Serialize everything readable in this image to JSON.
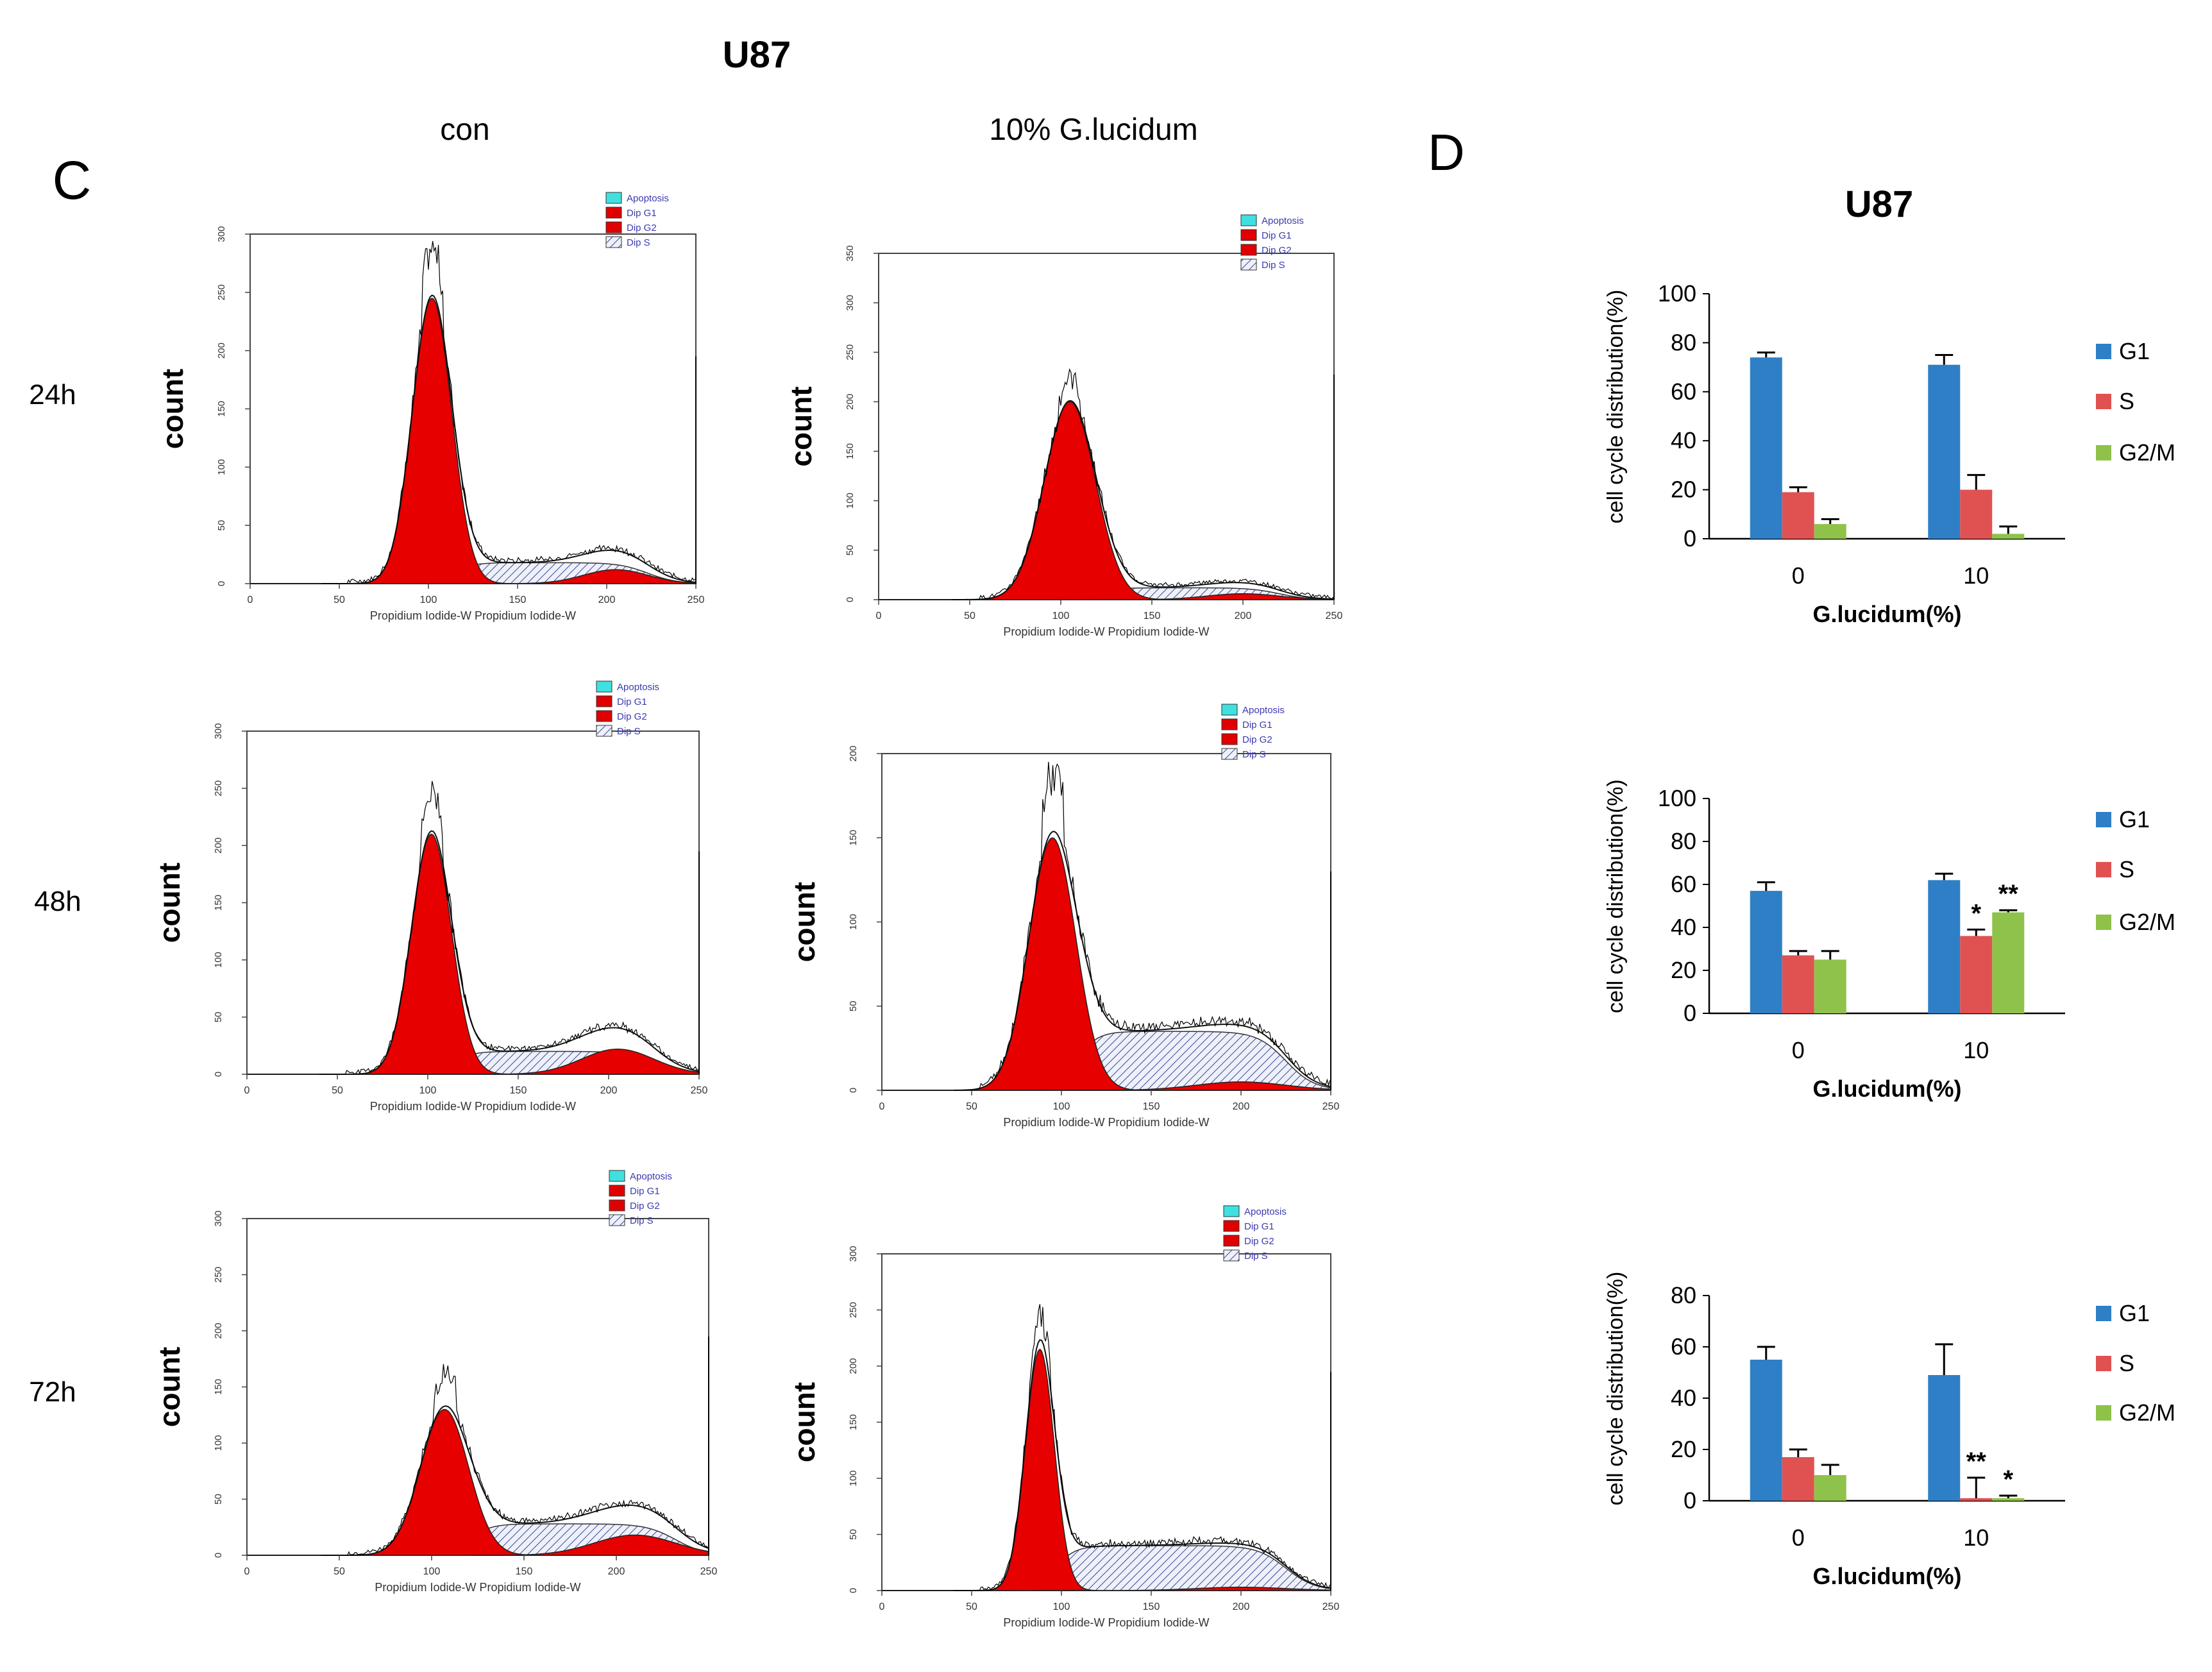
{
  "titles": {
    "main": "U87",
    "panel_c_letter": "C",
    "panel_d_letter": "D",
    "panel_d_title": "U87",
    "col_con": "con",
    "col_treated": "10% G.lucidum"
  },
  "rows": [
    "24h",
    "48h",
    "72h"
  ],
  "flow": {
    "ylabel": "count",
    "xlabel": "Propidium Iodide-W Propidium Iodide-W",
    "legend": [
      "Apoptosis",
      "Dip G1",
      "Dip G2",
      "Dip S"
    ],
    "x_ticks": [
      "0",
      "50",
      "100",
      "150",
      "200",
      "250"
    ],
    "panels": [
      {
        "row": "24h",
        "condition": "con",
        "ymax": 300,
        "y_ticks": [
          "0",
          "50",
          "100",
          "150",
          "200",
          "250",
          "300"
        ],
        "g1_mean": 102,
        "g1_sd": 11,
        "g1_height": 245,
        "g2_mean": 205,
        "g2_sd": 18,
        "g2_height": 12,
        "s_level": 18,
        "raw_scale": 1.15
      },
      {
        "row": "24h",
        "condition": "10% G.lucidum",
        "ymax": 350,
        "y_ticks": [
          "0",
          "50",
          "100",
          "150",
          "200",
          "250",
          "300",
          "350"
        ],
        "g1_mean": 105,
        "g1_sd": 14,
        "g1_height": 200,
        "g2_mean": 200,
        "g2_sd": 20,
        "g2_height": 6,
        "s_level": 12,
        "raw_scale": 1.1
      },
      {
        "row": "48h",
        "condition": "con",
        "ymax": 300,
        "y_ticks": [
          "0",
          "50",
          "100",
          "150",
          "200",
          "250",
          "300"
        ],
        "g1_mean": 102,
        "g1_sd": 11,
        "g1_height": 210,
        "g2_mean": 205,
        "g2_sd": 20,
        "g2_height": 22,
        "s_level": 20,
        "raw_scale": 1.15
      },
      {
        "row": "48h",
        "condition": "10% G.lucidum",
        "ymax": 200,
        "y_ticks": [
          "0",
          "50",
          "100",
          "150",
          "200"
        ],
        "g1_mean": 95,
        "g1_sd": 13,
        "g1_height": 150,
        "g2_mean": 200,
        "g2_sd": 25,
        "g2_height": 5,
        "s_level": 35,
        "raw_scale": 1.2
      },
      {
        "row": "72h",
        "condition": "con",
        "ymax": 300,
        "y_ticks": [
          "0",
          "50",
          "100",
          "150",
          "200",
          "250",
          "300"
        ],
        "g1_mean": 107,
        "g1_sd": 13,
        "g1_height": 130,
        "g2_mean": 210,
        "g2_sd": 22,
        "g2_height": 18,
        "s_level": 28,
        "raw_scale": 1.2
      },
      {
        "row": "72h",
        "condition": "10% G.lucidum",
        "ymax": 300,
        "y_ticks": [
          "0",
          "50",
          "100",
          "150",
          "200",
          "250",
          "300"
        ],
        "g1_mean": 88,
        "g1_sd": 8,
        "g1_height": 215,
        "g2_mean": 200,
        "g2_sd": 25,
        "g2_height": 3,
        "s_level": 40,
        "raw_scale": 1.1
      }
    ]
  },
  "chart_data": [
    {
      "type": "bar",
      "title": "U87",
      "time": "24h",
      "categories": [
        "0",
        "10"
      ],
      "xlabel": "G.lucidum(%)",
      "ylabel": "cell cycle distribution(%)",
      "ylim": [
        0,
        100
      ],
      "y_ticks": [
        "0",
        "20",
        "40",
        "60",
        "80",
        "100"
      ],
      "series": [
        {
          "name": "G1",
          "color": "#2e7fc6",
          "values": [
            74,
            71
          ],
          "errors": [
            2,
            4
          ]
        },
        {
          "name": "S",
          "color": "#e05252",
          "values": [
            19,
            20
          ],
          "errors": [
            2,
            6
          ]
        },
        {
          "name": "G2/M",
          "color": "#8fc24a",
          "values": [
            6,
            2
          ],
          "errors": [
            2,
            3
          ]
        }
      ],
      "annotations": []
    },
    {
      "type": "bar",
      "time": "48h",
      "categories": [
        "0",
        "10"
      ],
      "xlabel": "G.lucidum(%)",
      "ylabel": "cell cycle distribution(%)",
      "ylim": [
        0,
        100
      ],
      "y_ticks": [
        "0",
        "20",
        "40",
        "60",
        "80",
        "100"
      ],
      "series": [
        {
          "name": "G1",
          "color": "#2e7fc6",
          "values": [
            57,
            62
          ],
          "errors": [
            4,
            3
          ]
        },
        {
          "name": "S",
          "color": "#e05252",
          "values": [
            27,
            36
          ],
          "errors": [
            2,
            3
          ]
        },
        {
          "name": "G2/M",
          "color": "#8fc24a",
          "values": [
            25,
            47
          ],
          "errors": [
            4,
            1
          ]
        }
      ],
      "annotations": [
        {
          "category": "10",
          "series": "S",
          "text": "*"
        },
        {
          "category": "10",
          "series": "G2/M",
          "text": "**"
        }
      ]
    },
    {
      "type": "bar",
      "time": "72h",
      "categories": [
        "0",
        "10"
      ],
      "xlabel": "G.lucidum(%)",
      "ylabel": "cell cycle distribution(%)",
      "ylim": [
        0,
        80
      ],
      "y_ticks": [
        "0",
        "20",
        "40",
        "60",
        "80"
      ],
      "series": [
        {
          "name": "G1",
          "color": "#2e7fc6",
          "values": [
            55,
            49
          ],
          "errors": [
            5,
            12
          ]
        },
        {
          "name": "S",
          "color": "#e05252",
          "values": [
            17,
            1
          ],
          "errors": [
            3,
            8
          ]
        },
        {
          "name": "G2/M",
          "color": "#8fc24a",
          "values": [
            10,
            1
          ],
          "errors": [
            4,
            1
          ]
        }
      ],
      "annotations": [
        {
          "category": "10",
          "series": "S",
          "text": "**"
        },
        {
          "category": "10",
          "series": "G2/M",
          "text": "*"
        }
      ]
    }
  ]
}
